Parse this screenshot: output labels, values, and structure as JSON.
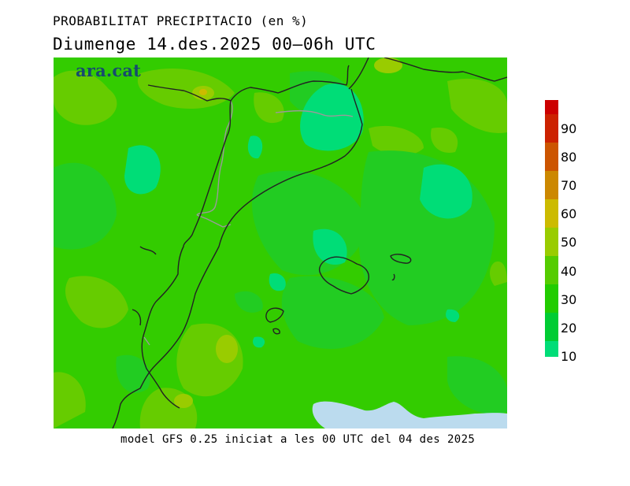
{
  "header": {
    "title": "PROBABILITAT PRECIPITACIO (en %)",
    "subtitle": "Diumenge  14.des.2025 00–06h UTC"
  },
  "logo": {
    "text": "ara.cat"
  },
  "footer": {
    "text": "model GFS 0.25 iniciat a les 00 UTC del 04 des 2025"
  },
  "colors": {
    "c10": "#00dd77",
    "c20": "#11cc22",
    "c30": "#22cc11",
    "c40": "#44cc00",
    "c50": "#88cc00",
    "c60": "#ccbb00",
    "c70": "#cc7700",
    "c80": "#cc4400",
    "c90": "#cc0000",
    "sea_light": "#bbdbee",
    "coast": "#222222",
    "border": "#9a9a9a"
  },
  "legend": {
    "labels": [
      "90",
      "80",
      "70",
      "60",
      "50",
      "40",
      "30",
      "20",
      "10"
    ],
    "bands": [
      {
        "color": "#cc0000"
      },
      {
        "color": "#cc2200"
      },
      {
        "color": "#cc5500"
      },
      {
        "color": "#cc8800"
      },
      {
        "color": "#ccbb00"
      },
      {
        "color": "#99cc00"
      },
      {
        "color": "#55cc00"
      },
      {
        "color": "#22cc00"
      },
      {
        "color": "#00cc33"
      },
      {
        "color": "#00dd77"
      }
    ]
  }
}
